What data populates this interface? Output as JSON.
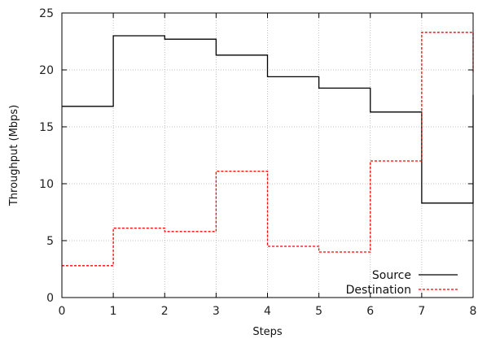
{
  "chart_data": {
    "type": "line",
    "step": true,
    "xlabel": "Steps",
    "ylabel": "Throughput (Mbps)",
    "xlim": [
      0,
      8
    ],
    "ylim": [
      0,
      25
    ],
    "xticks": [
      "0",
      "1",
      "2",
      "3",
      "4",
      "5",
      "6",
      "7",
      "8"
    ],
    "yticks": [
      "0",
      "5",
      "10",
      "15",
      "20",
      "25"
    ],
    "grid": true,
    "legend_position": "bottom-right",
    "series": [
      {
        "name": "Source",
        "color": "#000000",
        "dash": "solid",
        "x": [
          0,
          1,
          2,
          3,
          4,
          5,
          6,
          7,
          8
        ],
        "values": [
          16.8,
          23.0,
          22.7,
          21.3,
          19.4,
          18.4,
          16.3,
          8.3,
          17.8
        ]
      },
      {
        "name": "Destination",
        "color": "#ff0000",
        "dash": "dashed",
        "x": [
          0,
          1,
          2,
          3,
          4,
          5,
          6,
          7,
          8
        ],
        "values": [
          2.8,
          6.1,
          5.8,
          11.1,
          4.5,
          4.0,
          12.0,
          23.3,
          19.8
        ]
      }
    ]
  }
}
